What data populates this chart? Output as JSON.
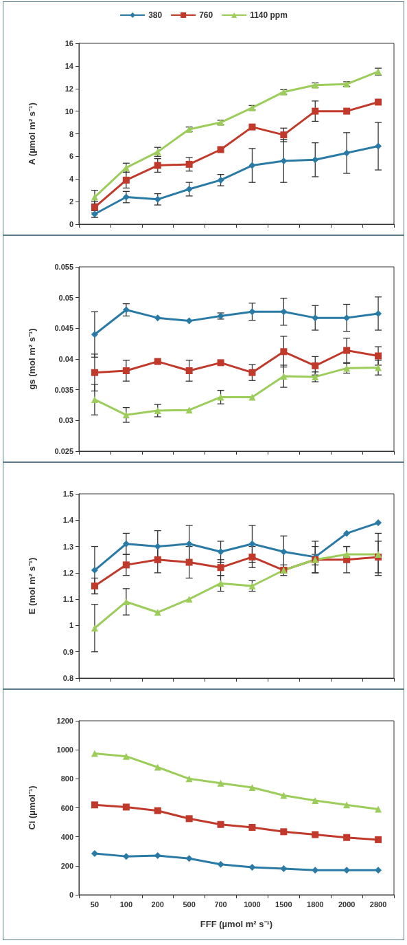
{
  "chart_data": [
    {
      "type": "line",
      "ylabel": "A (µmol m² s⁻¹)",
      "categories": [
        "50",
        "100",
        "200",
        "500",
        "700",
        "1000",
        "1500",
        "1800",
        "2000",
        "2800"
      ],
      "ylim": [
        0,
        16
      ],
      "yticks": [
        0,
        2,
        4,
        6,
        8,
        10,
        12,
        14,
        16
      ],
      "grid": false,
      "legend": "top",
      "tick_labels": "y",
      "series": [
        {
          "name": "380",
          "color": "#2a7aa6",
          "marker": "diamond",
          "values": [
            0.9,
            2.4,
            2.2,
            3.1,
            3.9,
            5.2,
            5.6,
            5.7,
            6.3,
            6.9
          ],
          "errors": [
            0.3,
            0.5,
            0.5,
            0.6,
            0.5,
            1.5,
            1.9,
            1.5,
            1.8,
            2.1
          ]
        },
        {
          "name": "760",
          "color": "#c0392b",
          "marker": "square",
          "values": [
            1.5,
            3.9,
            5.2,
            5.3,
            6.6,
            8.6,
            7.9,
            10.0,
            10.0,
            10.8
          ],
          "errors": [
            0.5,
            0.7,
            0.6,
            0.6,
            null,
            null,
            0.6,
            0.9,
            null,
            null
          ]
        },
        {
          "name": "1140 ppm",
          "color": "#9ccc5a",
          "marker": "triangle",
          "values": [
            2.4,
            5.0,
            6.4,
            8.4,
            9.0,
            10.3,
            11.7,
            12.3,
            12.4,
            13.5
          ],
          "errors": [
            0.6,
            0.4,
            0.4,
            0.2,
            0.2,
            0.2,
            0.2,
            0.2,
            0.2,
            0.3
          ]
        }
      ]
    },
    {
      "type": "line",
      "ylabel": "gs (mol m² s⁻¹)",
      "categories": [
        "50",
        "100",
        "200",
        "500",
        "700",
        "1000",
        "1500",
        "1800",
        "2000",
        "2800"
      ],
      "ylim": [
        0.025,
        0.055
      ],
      "yticks": [
        0.025,
        0.03,
        0.035,
        0.04,
        0.045,
        0.05,
        0.055
      ],
      "grid": false,
      "tick_labels": "y",
      "series": [
        {
          "color": "#2a7aa6",
          "marker": "diamond",
          "values": [
            0.044,
            0.048,
            0.0467,
            0.0462,
            0.047,
            0.0477,
            0.0477,
            0.0467,
            0.0467,
            0.0474
          ],
          "errors": [
            0.0037,
            0.001,
            null,
            null,
            0.0005,
            0.0014,
            0.0022,
            0.002,
            0.0022,
            0.0027
          ]
        },
        {
          "color": "#c0392b",
          "marker": "square",
          "values": [
            0.0378,
            0.0381,
            0.0396,
            0.0381,
            0.0394,
            0.0378,
            0.0412,
            0.0389,
            0.0414,
            0.0405
          ],
          "errors": [
            0.003,
            0.0017,
            null,
            0.0017,
            null,
            0.0013,
            0.0025,
            0.0015,
            0.002,
            0.0015
          ]
        },
        {
          "color": "#9ccc5a",
          "marker": "triangle",
          "values": [
            0.0334,
            0.0309,
            0.0316,
            0.0317,
            0.0338,
            0.0338,
            0.0372,
            0.0371,
            0.0385,
            0.0386
          ],
          "errors": [
            0.0025,
            0.0012,
            0.001,
            null,
            0.0011,
            null,
            0.0018,
            0.0008,
            0.0008,
            0.0012
          ]
        }
      ]
    },
    {
      "type": "line",
      "ylabel": "E (mol m² s⁻¹)",
      "categories": [
        "50",
        "100",
        "200",
        "500",
        "700",
        "1000",
        "1500",
        "1800",
        "2000",
        "2800"
      ],
      "ylim": [
        0.8,
        1.5
      ],
      "yticks": [
        0.8,
        0.9,
        1,
        1.1,
        1.2,
        1.3,
        1.4,
        1.5
      ],
      "grid": false,
      "tick_labels": "y",
      "series": [
        {
          "color": "#2a7aa6",
          "marker": "diamond",
          "values": [
            1.21,
            1.31,
            1.3,
            1.31,
            1.28,
            1.31,
            1.28,
            1.26,
            1.35,
            1.39
          ],
          "errors": [
            0.09,
            0.04,
            0.06,
            0.07,
            0.04,
            0.07,
            0.06,
            0.06,
            null,
            null
          ]
        },
        {
          "color": "#c0392b",
          "marker": "square",
          "values": [
            1.15,
            1.23,
            1.25,
            1.24,
            1.22,
            1.26,
            1.21,
            1.25,
            1.25,
            1.26
          ],
          "errors": [
            0.03,
            0.04,
            0.05,
            0.06,
            0.03,
            0.04,
            null,
            0.05,
            0.05,
            0.06
          ]
        },
        {
          "color": "#9ccc5a",
          "marker": "triangle",
          "values": [
            0.99,
            1.09,
            1.05,
            1.1,
            1.16,
            1.15,
            1.21,
            1.25,
            1.27,
            1.27
          ],
          "errors": [
            0.09,
            0.05,
            null,
            null,
            0.03,
            0.02,
            0.02,
            0.02,
            0.03,
            0.08
          ]
        }
      ]
    },
    {
      "type": "line",
      "ylabel": "Ci (µmol⁻¹)",
      "xlabel": "FFF (µmol m² s⁻¹)",
      "categories": [
        "50",
        "100",
        "200",
        "500",
        "700",
        "1000",
        "1500",
        "1800",
        "2000",
        "2800"
      ],
      "ylim": [
        0,
        1200
      ],
      "yticks": [
        0,
        200,
        400,
        600,
        800,
        1000,
        1200
      ],
      "grid": false,
      "series": [
        {
          "color": "#2a7aa6",
          "marker": "diamond",
          "values": [
            285,
            265,
            270,
            250,
            210,
            190,
            180,
            170,
            170,
            170
          ]
        },
        {
          "color": "#c0392b",
          "marker": "square",
          "values": [
            620,
            605,
            580,
            525,
            485,
            465,
            435,
            415,
            395,
            380
          ]
        },
        {
          "color": "#9ccc5a",
          "marker": "triangle",
          "values": [
            975,
            955,
            880,
            800,
            770,
            740,
            685,
            650,
            620,
            590
          ]
        }
      ]
    }
  ]
}
